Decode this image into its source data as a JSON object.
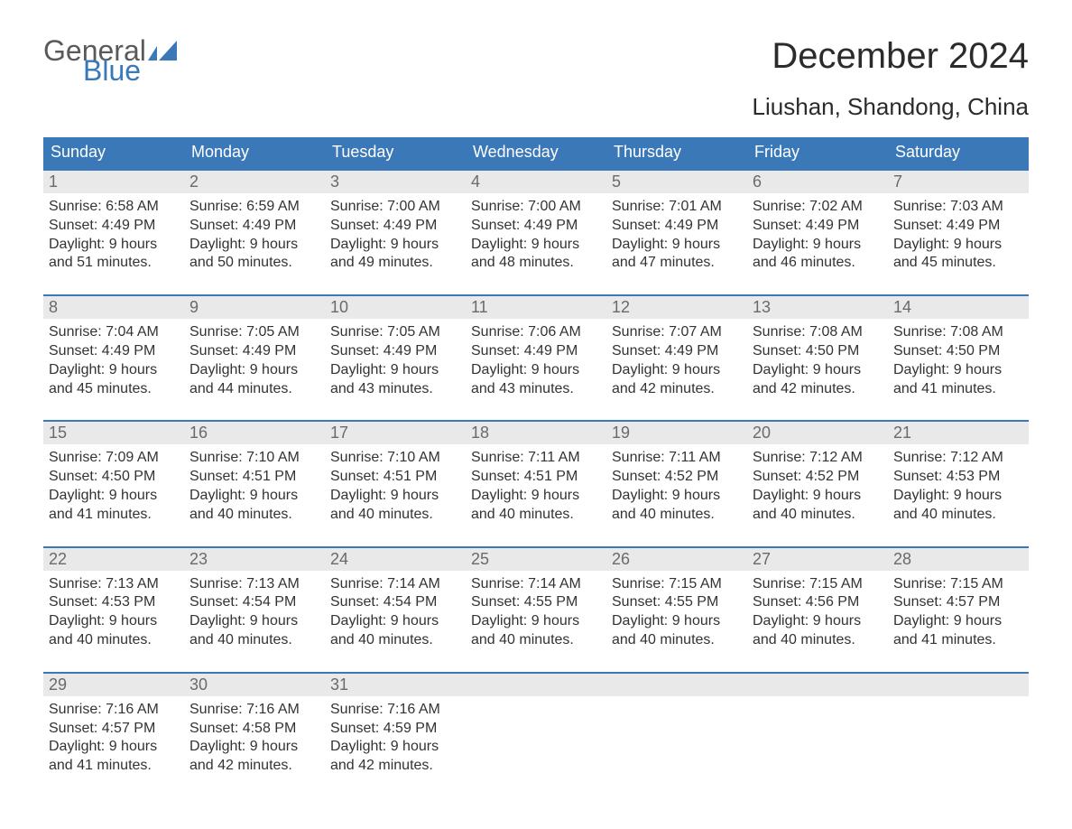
{
  "brand": {
    "word1": "General",
    "word2": "Blue",
    "text_color_word1": "#5a5a5a",
    "text_color_word2": "#3b78b8",
    "flag_color": "#3b78b8"
  },
  "title": "December 2024",
  "location": "Liushan, Shandong, China",
  "colors": {
    "header_bg": "#3b78b8",
    "header_text": "#ffffff",
    "week_border": "#3b78b8",
    "daynum_bg": "#e9e9e9",
    "daynum_text": "#6a6a6a",
    "body_text": "#333333",
    "page_bg": "#ffffff"
  },
  "typography": {
    "title_fontsize": 40,
    "location_fontsize": 26,
    "dayheader_fontsize": 18,
    "daynum_fontsize": 18,
    "body_fontsize": 16
  },
  "day_labels": [
    "Sunday",
    "Monday",
    "Tuesday",
    "Wednesday",
    "Thursday",
    "Friday",
    "Saturday"
  ],
  "weeks": [
    [
      {
        "n": "1",
        "sunrise": "Sunrise: 6:58 AM",
        "sunset": "Sunset: 4:49 PM",
        "day1": "Daylight: 9 hours",
        "day2": "and 51 minutes."
      },
      {
        "n": "2",
        "sunrise": "Sunrise: 6:59 AM",
        "sunset": "Sunset: 4:49 PM",
        "day1": "Daylight: 9 hours",
        "day2": "and 50 minutes."
      },
      {
        "n": "3",
        "sunrise": "Sunrise: 7:00 AM",
        "sunset": "Sunset: 4:49 PM",
        "day1": "Daylight: 9 hours",
        "day2": "and 49 minutes."
      },
      {
        "n": "4",
        "sunrise": "Sunrise: 7:00 AM",
        "sunset": "Sunset: 4:49 PM",
        "day1": "Daylight: 9 hours",
        "day2": "and 48 minutes."
      },
      {
        "n": "5",
        "sunrise": "Sunrise: 7:01 AM",
        "sunset": "Sunset: 4:49 PM",
        "day1": "Daylight: 9 hours",
        "day2": "and 47 minutes."
      },
      {
        "n": "6",
        "sunrise": "Sunrise: 7:02 AM",
        "sunset": "Sunset: 4:49 PM",
        "day1": "Daylight: 9 hours",
        "day2": "and 46 minutes."
      },
      {
        "n": "7",
        "sunrise": "Sunrise: 7:03 AM",
        "sunset": "Sunset: 4:49 PM",
        "day1": "Daylight: 9 hours",
        "day2": "and 45 minutes."
      }
    ],
    [
      {
        "n": "8",
        "sunrise": "Sunrise: 7:04 AM",
        "sunset": "Sunset: 4:49 PM",
        "day1": "Daylight: 9 hours",
        "day2": "and 45 minutes."
      },
      {
        "n": "9",
        "sunrise": "Sunrise: 7:05 AM",
        "sunset": "Sunset: 4:49 PM",
        "day1": "Daylight: 9 hours",
        "day2": "and 44 minutes."
      },
      {
        "n": "10",
        "sunrise": "Sunrise: 7:05 AM",
        "sunset": "Sunset: 4:49 PM",
        "day1": "Daylight: 9 hours",
        "day2": "and 43 minutes."
      },
      {
        "n": "11",
        "sunrise": "Sunrise: 7:06 AM",
        "sunset": "Sunset: 4:49 PM",
        "day1": "Daylight: 9 hours",
        "day2": "and 43 minutes."
      },
      {
        "n": "12",
        "sunrise": "Sunrise: 7:07 AM",
        "sunset": "Sunset: 4:49 PM",
        "day1": "Daylight: 9 hours",
        "day2": "and 42 minutes."
      },
      {
        "n": "13",
        "sunrise": "Sunrise: 7:08 AM",
        "sunset": "Sunset: 4:50 PM",
        "day1": "Daylight: 9 hours",
        "day2": "and 42 minutes."
      },
      {
        "n": "14",
        "sunrise": "Sunrise: 7:08 AM",
        "sunset": "Sunset: 4:50 PM",
        "day1": "Daylight: 9 hours",
        "day2": "and 41 minutes."
      }
    ],
    [
      {
        "n": "15",
        "sunrise": "Sunrise: 7:09 AM",
        "sunset": "Sunset: 4:50 PM",
        "day1": "Daylight: 9 hours",
        "day2": "and 41 minutes."
      },
      {
        "n": "16",
        "sunrise": "Sunrise: 7:10 AM",
        "sunset": "Sunset: 4:51 PM",
        "day1": "Daylight: 9 hours",
        "day2": "and 40 minutes."
      },
      {
        "n": "17",
        "sunrise": "Sunrise: 7:10 AM",
        "sunset": "Sunset: 4:51 PM",
        "day1": "Daylight: 9 hours",
        "day2": "and 40 minutes."
      },
      {
        "n": "18",
        "sunrise": "Sunrise: 7:11 AM",
        "sunset": "Sunset: 4:51 PM",
        "day1": "Daylight: 9 hours",
        "day2": "and 40 minutes."
      },
      {
        "n": "19",
        "sunrise": "Sunrise: 7:11 AM",
        "sunset": "Sunset: 4:52 PM",
        "day1": "Daylight: 9 hours",
        "day2": "and 40 minutes."
      },
      {
        "n": "20",
        "sunrise": "Sunrise: 7:12 AM",
        "sunset": "Sunset: 4:52 PM",
        "day1": "Daylight: 9 hours",
        "day2": "and 40 minutes."
      },
      {
        "n": "21",
        "sunrise": "Sunrise: 7:12 AM",
        "sunset": "Sunset: 4:53 PM",
        "day1": "Daylight: 9 hours",
        "day2": "and 40 minutes."
      }
    ],
    [
      {
        "n": "22",
        "sunrise": "Sunrise: 7:13 AM",
        "sunset": "Sunset: 4:53 PM",
        "day1": "Daylight: 9 hours",
        "day2": "and 40 minutes."
      },
      {
        "n": "23",
        "sunrise": "Sunrise: 7:13 AM",
        "sunset": "Sunset: 4:54 PM",
        "day1": "Daylight: 9 hours",
        "day2": "and 40 minutes."
      },
      {
        "n": "24",
        "sunrise": "Sunrise: 7:14 AM",
        "sunset": "Sunset: 4:54 PM",
        "day1": "Daylight: 9 hours",
        "day2": "and 40 minutes."
      },
      {
        "n": "25",
        "sunrise": "Sunrise: 7:14 AM",
        "sunset": "Sunset: 4:55 PM",
        "day1": "Daylight: 9 hours",
        "day2": "and 40 minutes."
      },
      {
        "n": "26",
        "sunrise": "Sunrise: 7:15 AM",
        "sunset": "Sunset: 4:55 PM",
        "day1": "Daylight: 9 hours",
        "day2": "and 40 minutes."
      },
      {
        "n": "27",
        "sunrise": "Sunrise: 7:15 AM",
        "sunset": "Sunset: 4:56 PM",
        "day1": "Daylight: 9 hours",
        "day2": "and 40 minutes."
      },
      {
        "n": "28",
        "sunrise": "Sunrise: 7:15 AM",
        "sunset": "Sunset: 4:57 PM",
        "day1": "Daylight: 9 hours",
        "day2": "and 41 minutes."
      }
    ],
    [
      {
        "n": "29",
        "sunrise": "Sunrise: 7:16 AM",
        "sunset": "Sunset: 4:57 PM",
        "day1": "Daylight: 9 hours",
        "day2": "and 41 minutes."
      },
      {
        "n": "30",
        "sunrise": "Sunrise: 7:16 AM",
        "sunset": "Sunset: 4:58 PM",
        "day1": "Daylight: 9 hours",
        "day2": "and 42 minutes."
      },
      {
        "n": "31",
        "sunrise": "Sunrise: 7:16 AM",
        "sunset": "Sunset: 4:59 PM",
        "day1": "Daylight: 9 hours",
        "day2": "and 42 minutes."
      },
      null,
      null,
      null,
      null
    ]
  ]
}
